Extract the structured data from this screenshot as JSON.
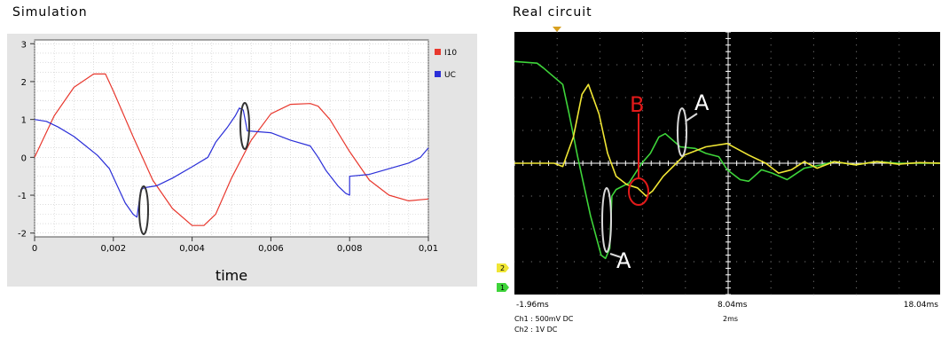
{
  "simulation": {
    "title": "Simulation",
    "chart_data": {
      "type": "line",
      "xlabel": "time",
      "xlim": [
        0,
        0.01
      ],
      "ylim": [
        -2.1,
        3.1
      ],
      "grid": true,
      "legend_position": "top-right",
      "xticks": [
        "0",
        "0,002",
        "0,004",
        "0,006",
        "0,008",
        "0,01"
      ],
      "yticks": [
        "3",
        "2",
        "1",
        "0",
        "-1",
        "-2"
      ],
      "series": [
        {
          "name": "I10",
          "color": "#e8382e",
          "x": [
            0,
            0.0005,
            0.001,
            0.0015,
            0.0018,
            0.002,
            0.0025,
            0.003,
            0.0035,
            0.004,
            0.0043,
            0.0046,
            0.005,
            0.0055,
            0.006,
            0.0065,
            0.007,
            0.0072,
            0.0075,
            0.008,
            0.0085,
            0.009,
            0.0095,
            0.01
          ],
          "y": [
            0,
            1.1,
            1.85,
            2.2,
            2.2,
            1.75,
            0.55,
            -0.6,
            -1.35,
            -1.8,
            -1.8,
            -1.5,
            -0.55,
            0.45,
            1.15,
            1.4,
            1.42,
            1.35,
            1.0,
            0.15,
            -0.6,
            -1.0,
            -1.15,
            -1.1
          ]
        },
        {
          "name": "UC",
          "color": "#2b2fd8",
          "x": [
            0,
            0.0003,
            0.0006,
            0.001,
            0.0013,
            0.0016,
            0.0019,
            0.0021,
            0.0023,
            0.0025,
            0.0026,
            0.0027,
            0.0028,
            0.0031,
            0.0035,
            0.004,
            0.0044,
            0.0046,
            0.0049,
            0.0051,
            0.0052,
            0.0053,
            0.0054,
            0.006,
            0.0065,
            0.007,
            0.0072,
            0.0074,
            0.0077,
            0.0079,
            0.008,
            0.008,
            0.0085,
            0.009,
            0.0095,
            0.0098,
            0.01
          ],
          "y": [
            1.0,
            0.95,
            0.8,
            0.55,
            0.3,
            0.05,
            -0.3,
            -0.75,
            -1.2,
            -1.5,
            -1.58,
            -0.85,
            -0.8,
            -0.75,
            -0.55,
            -0.25,
            0.0,
            0.4,
            0.8,
            1.1,
            1.3,
            1.25,
            0.7,
            0.65,
            0.45,
            0.3,
            0.0,
            -0.35,
            -0.75,
            -0.95,
            -1.0,
            -0.5,
            -0.45,
            -0.3,
            -0.15,
            0.0,
            0.25
          ]
        }
      ]
    }
  },
  "scope": {
    "title": "Real circuit",
    "chart_data": {
      "type": "line",
      "grid": true,
      "divisions_x": 10,
      "divisions_y": 8,
      "ylim": [
        -4,
        4
      ],
      "time_range_ms": [
        -1.96,
        18.04
      ],
      "xtick_labels": [
        "-1.96ms",
        "8.04ms",
        "18.04ms"
      ],
      "info": {
        "ch1": "Ch1 : 500mV  DC",
        "ch2": "Ch2 : 1V  DC",
        "timebase": "2ms"
      },
      "channel_markers": [
        "2",
        "1"
      ],
      "annotations": [
        "A",
        "A",
        "B"
      ],
      "series": [
        {
          "name": "Ch1",
          "color": "#3ed43a",
          "x": [
            -1.96,
            -0.9,
            -0.6,
            0.3,
            0.6,
            1.0,
            1.6,
            2.1,
            2.3,
            2.5,
            2.6,
            2.8,
            3.4,
            3.6,
            4.0,
            4.4,
            4.8,
            5.1,
            5.8,
            6.5,
            7.0,
            7.6,
            8.0,
            8.6,
            9.0,
            9.6,
            10.1,
            10.8,
            11.6,
            12.4,
            13.0,
            14.0,
            15.0,
            16.0,
            17.0,
            18.04
          ],
          "y": [
            3.1,
            3.05,
            2.9,
            2.4,
            1.5,
            0.2,
            -1.6,
            -2.8,
            -2.9,
            -2.6,
            -1.0,
            -0.8,
            -0.6,
            -0.4,
            0.0,
            0.3,
            0.8,
            0.9,
            0.5,
            0.45,
            0.3,
            0.2,
            -0.2,
            -0.5,
            -0.55,
            -0.2,
            -0.3,
            -0.5,
            -0.15,
            -0.05,
            0.05,
            -0.05,
            0.05,
            0.0,
            0.0,
            0.0
          ]
        },
        {
          "name": "Ch2",
          "color": "#f0e635",
          "x": [
            -1.96,
            -0.1,
            0.3,
            0.8,
            1.2,
            1.5,
            2.0,
            2.4,
            2.8,
            3.3,
            3.8,
            4.2,
            4.5,
            5.0,
            6.0,
            7.0,
            8.0,
            9.0,
            9.8,
            10.4,
            11.0,
            11.6,
            12.2,
            13.0,
            14.0,
            15.0,
            16.0,
            17.0,
            18.04
          ],
          "y": [
            0.0,
            0.0,
            -0.1,
            0.8,
            2.1,
            2.4,
            1.5,
            0.3,
            -0.4,
            -0.65,
            -0.75,
            -1.0,
            -0.85,
            -0.4,
            0.25,
            0.5,
            0.6,
            0.25,
            0.0,
            -0.3,
            -0.2,
            0.05,
            -0.15,
            0.05,
            -0.05,
            0.05,
            -0.03,
            0.02,
            0.0
          ]
        }
      ]
    }
  }
}
